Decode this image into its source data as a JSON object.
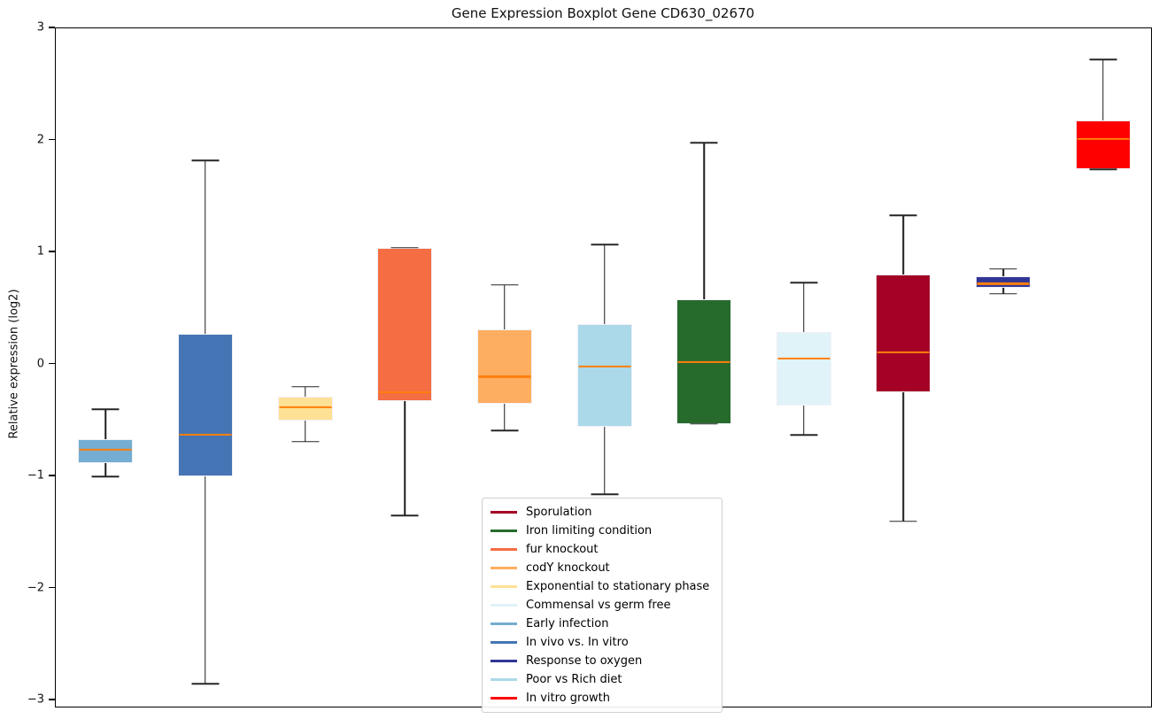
{
  "title": "Gene Expression Boxplot Gene CD630_02670",
  "chart_data": {
    "type": "boxplot",
    "title": "Gene Expression Boxplot Gene CD630_02670",
    "xlabel": "",
    "ylabel": "Relative expression (log2)",
    "ylim": [
      -3.07,
      3
    ],
    "yticks": [
      3,
      2,
      1,
      0,
      -1,
      -2,
      -3
    ],
    "ytick_labels": [
      "3",
      "2",
      "1",
      "0",
      "−1",
      "−2",
      "−3"
    ],
    "grid": false,
    "legend_position": "lower-center-inside",
    "median_color": "#ff7f0e",
    "whisker_color": "#1c1c1c",
    "box_edge_color": "#f0f0f6",
    "series": [
      {
        "name": "Early infection",
        "color": "#74add1",
        "whislo": -1.0,
        "q1": -0.88,
        "med": -0.76,
        "q3": -0.67,
        "whishi": -0.4
      },
      {
        "name": "In vivo vs. In vitro",
        "color": "#4575b4",
        "whislo": -2.85,
        "q1": -1.0,
        "med": -0.63,
        "q3": 0.27,
        "whishi": 1.82
      },
      {
        "name": "Exponential to stationary phase",
        "color": "#ffe195",
        "whislo": -0.69,
        "q1": -0.5,
        "med": -0.38,
        "q3": -0.29,
        "whishi": -0.2
      },
      {
        "name": "fur knockout",
        "color": "#f46d43",
        "whislo": -1.35,
        "q1": -0.33,
        "med": -0.25,
        "q3": 1.04,
        "whishi": 1.04
      },
      {
        "name": "codY knockout",
        "color": "#fdae61",
        "whislo": -0.59,
        "q1": -0.35,
        "med": -0.11,
        "q3": 0.31,
        "whishi": 0.71
      },
      {
        "name": "Poor vs Rich diet",
        "color": "#abd9e9",
        "whislo": -1.16,
        "q1": -0.56,
        "med": -0.02,
        "q3": 0.36,
        "whishi": 1.07
      },
      {
        "name": "Iron limiting condition",
        "color": "#276b2c",
        "whislo": -0.53,
        "q1": -0.53,
        "med": 0.02,
        "q3": 0.58,
        "whishi": 1.98
      },
      {
        "name": "Commensal vs germ free",
        "color": "#e0f3f8",
        "whislo": -0.63,
        "q1": -0.37,
        "med": 0.05,
        "q3": 0.29,
        "whishi": 0.73
      },
      {
        "name": "Sporulation",
        "color": "#a50026",
        "whislo": -1.4,
        "q1": -0.25,
        "med": 0.11,
        "q3": 0.8,
        "whishi": 1.33
      },
      {
        "name": "Response to oxygen",
        "color": "#313695",
        "whislo": 0.63,
        "q1": 0.68,
        "med": 0.72,
        "q3": 0.79,
        "whishi": 0.85
      },
      {
        "name": "In vitro growth",
        "color": "#ff0000",
        "whislo": 1.74,
        "q1": 1.74,
        "med": 2.01,
        "q3": 2.18,
        "whishi": 2.72
      }
    ],
    "legend": [
      {
        "label": "Sporulation",
        "color": "#a50026"
      },
      {
        "label": "Iron limiting condition",
        "color": "#276b2c"
      },
      {
        "label": "fur knockout",
        "color": "#f46d43"
      },
      {
        "label": "codY knockout",
        "color": "#fdae61"
      },
      {
        "label": "Exponential to stationary phase",
        "color": "#ffe195"
      },
      {
        "label": "Commensal vs germ free",
        "color": "#e0f3f8"
      },
      {
        "label": "Early infection",
        "color": "#74add1"
      },
      {
        "label": "In vivo vs. In vitro",
        "color": "#4575b4"
      },
      {
        "label": "Response to oxygen",
        "color": "#313695"
      },
      {
        "label": "Poor vs Rich diet",
        "color": "#abd9e9"
      },
      {
        "label": "In vitro growth",
        "color": "#ff0000"
      }
    ]
  }
}
